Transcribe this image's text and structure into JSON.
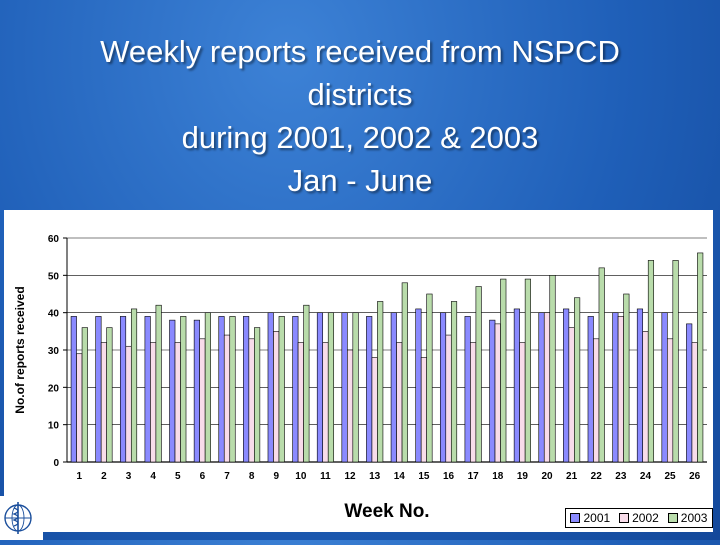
{
  "title_lines": [
    "Weekly reports received from  NSPCD",
    "districts",
    "during 2001, 2002 & 2003",
    "Jan - June"
  ],
  "colors": {
    "s2001": "#8a8aff",
    "s2002": "#f8dcea",
    "s2003": "#b9dcab"
  },
  "logo_icon": "who-emblem-icon",
  "chart_data": {
    "type": "bar",
    "title": "",
    "xlabel": "Week No.",
    "ylabel": "No.of reports received",
    "ylim": [
      0,
      60
    ],
    "yticks": [
      0,
      10,
      20,
      30,
      40,
      50,
      60
    ],
    "grid": true,
    "legend_position": "bottom-right",
    "categories": [
      "1",
      "2",
      "3",
      "4",
      "5",
      "6",
      "7",
      "8",
      "9",
      "10",
      "11",
      "12",
      "13",
      "14",
      "15",
      "16",
      "17",
      "18",
      "19",
      "20",
      "21",
      "22",
      "23",
      "24",
      "25",
      "26"
    ],
    "series": [
      {
        "name": "2001",
        "values": [
          39,
          39,
          39,
          39,
          38,
          38,
          39,
          39,
          40,
          39,
          40,
          40,
          39,
          40,
          41,
          40,
          39,
          38,
          41,
          40,
          41,
          39,
          40,
          41,
          40,
          37
        ]
      },
      {
        "name": "2002",
        "values": [
          29,
          32,
          31,
          32,
          32,
          33,
          34,
          33,
          35,
          32,
          32,
          30,
          28,
          32,
          28,
          34,
          32,
          37,
          32,
          40,
          36,
          33,
          39,
          35,
          33,
          32
        ]
      },
      {
        "name": "2003",
        "values": [
          36,
          36,
          41,
          42,
          39,
          40,
          39,
          36,
          39,
          42,
          40,
          40,
          43,
          48,
          45,
          43,
          47,
          49,
          49,
          50,
          44,
          52,
          45,
          54,
          54,
          56
        ]
      }
    ]
  }
}
